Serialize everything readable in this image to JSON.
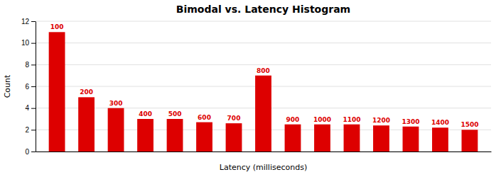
{
  "chart_data": {
    "type": "bar",
    "title": "Bimodal vs. Latency Histogram",
    "xlabel": "Latency (milliseconds)",
    "ylabel": "Count",
    "categories": [
      "100",
      "200",
      "300",
      "400",
      "500",
      "600",
      "700",
      "800",
      "900",
      "1000",
      "1100",
      "1200",
      "1300",
      "1400",
      "1500"
    ],
    "values": [
      11,
      5,
      4,
      3,
      3,
      2.7,
      2.6,
      7,
      2.5,
      2.5,
      2.5,
      2.4,
      2.3,
      2.2,
      2.0
    ],
    "color": "#dd0000",
    "ylim": [
      0,
      12
    ],
    "yticks": [
      0,
      2,
      4,
      6,
      8,
      10,
      12
    ],
    "grid": true,
    "tick_labels": "y"
  }
}
